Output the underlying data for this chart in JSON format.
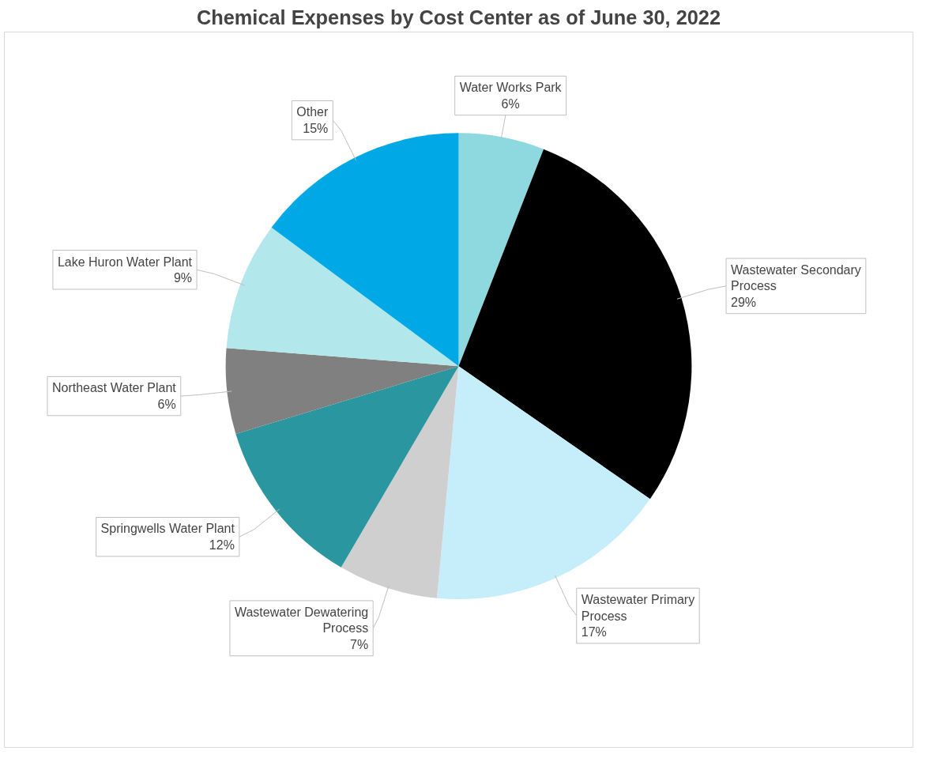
{
  "chart_data": {
    "type": "pie",
    "title": "Chemical Expenses by Cost Center as of June 30, 2022",
    "categories": [
      "Water Works Park",
      "Wastewater Secondary Process",
      "Wastewater Primary Process",
      "Wastewater Dewatering Process",
      "Springwells Water Plant",
      "Northeast Water Plant",
      "Lake Huron Water Plant",
      "Other"
    ],
    "values": [
      6,
      29,
      17,
      7,
      12,
      6,
      9,
      15
    ],
    "colors": [
      "#8ed9e0",
      "#000000",
      "#c5eefa",
      "#d0cfd0",
      "#2a96a0",
      "#808080",
      "#b2e7ec",
      "#00a9e6"
    ],
    "value_labels": [
      "6%",
      "29%",
      "17%",
      "7%",
      "12%",
      "6%",
      "9%",
      "15%"
    ]
  }
}
